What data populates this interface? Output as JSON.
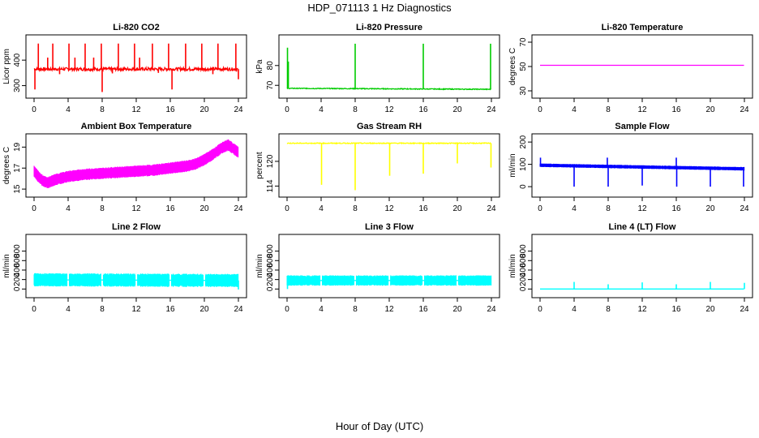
{
  "figure": {
    "title": "HDP_071113  1 Hz Diagnostics",
    "xlabel": "Hour of Day (UTC)"
  },
  "chart_data": [
    {
      "type": "line",
      "title": "Li-820 CO2",
      "ylabel": "Licor ppm",
      "color": "#ff0000",
      "xlim": [
        0,
        24
      ],
      "ylim": [
        270,
        480
      ],
      "xticks": [
        "0",
        "4",
        "8",
        "12",
        "16",
        "20",
        "24"
      ],
      "yticks": [
        300,
        400
      ],
      "baseline": 365,
      "baseline_noise": 6,
      "envelope": 0,
      "spikes": [
        {
          "x": 0.5,
          "to": 465
        },
        {
          "x": 0.1,
          "to": 285
        },
        {
          "x": 2.2,
          "to": 465
        },
        {
          "x": 1.6,
          "to": 410
        },
        {
          "x": 4.1,
          "to": 465
        },
        {
          "x": 4.8,
          "to": 410
        },
        {
          "x": 6.0,
          "to": 465
        },
        {
          "x": 7.0,
          "to": 410
        },
        {
          "x": 7.9,
          "to": 465
        },
        {
          "x": 8.0,
          "to": 275
        },
        {
          "x": 9.9,
          "to": 465
        },
        {
          "x": 11.8,
          "to": 465
        },
        {
          "x": 12.4,
          "to": 410
        },
        {
          "x": 13.9,
          "to": 465
        },
        {
          "x": 15.8,
          "to": 465
        },
        {
          "x": 16.2,
          "to": 285
        },
        {
          "x": 17.8,
          "to": 465
        },
        {
          "x": 19.7,
          "to": 465
        },
        {
          "x": 21.6,
          "to": 465
        },
        {
          "x": 23.7,
          "to": 465
        },
        {
          "x": 24.0,
          "to": 325
        },
        {
          "x": 3.0,
          "to": 345
        },
        {
          "x": 9.2,
          "to": 348
        },
        {
          "x": 14.6,
          "to": 350
        },
        {
          "x": 21.0,
          "to": 345
        }
      ]
    },
    {
      "type": "line",
      "title": "Li-820 Pressure",
      "ylabel": "kPa",
      "color": "#00cc00",
      "xlim": [
        0,
        24
      ],
      "ylim": [
        66,
        93
      ],
      "xticks": [
        "0",
        "4",
        "8",
        "12",
        "16",
        "20",
        "24"
      ],
      "yticks": [
        70,
        80
      ],
      "baseline": 68.5,
      "baseline_end": 68.0,
      "baseline_noise": 0.2,
      "envelope": 0,
      "spikes": [
        {
          "x": 0.05,
          "to": 89
        },
        {
          "x": 0.15,
          "to": 82
        },
        {
          "x": 8.0,
          "to": 91
        },
        {
          "x": 16.0,
          "to": 91
        },
        {
          "x": 23.9,
          "to": 91
        }
      ]
    },
    {
      "type": "line",
      "title": "Li-820 Temperature",
      "ylabel": "degrees C",
      "color": "#ff00ff",
      "xlim": [
        0,
        24
      ],
      "ylim": [
        28,
        72
      ],
      "xticks": [
        "0",
        "4",
        "8",
        "12",
        "16",
        "20",
        "24"
      ],
      "yticks": [
        30,
        50,
        70
      ],
      "baseline": 51,
      "baseline_noise": 0,
      "envelope": 0,
      "spikes": []
    },
    {
      "type": "line",
      "title": "Ambient Box Temperature",
      "ylabel": "degrees C",
      "color": "#ff00ff",
      "xlim": [
        0,
        24
      ],
      "ylim": [
        14.7,
        19.8
      ],
      "xticks": [
        "0",
        "4",
        "8",
        "12",
        "16",
        "20",
        "24"
      ],
      "yticks": [
        15,
        17,
        19
      ],
      "curve": [
        [
          0,
          16.7
        ],
        [
          0.5,
          16.2
        ],
        [
          1.0,
          15.8
        ],
        [
          1.6,
          15.6
        ],
        [
          2.5,
          15.9
        ],
        [
          4,
          16.2
        ],
        [
          6,
          16.4
        ],
        [
          8,
          16.5
        ],
        [
          10,
          16.6
        ],
        [
          12,
          16.7
        ],
        [
          14,
          16.8
        ],
        [
          16,
          17.0
        ],
        [
          18,
          17.2
        ],
        [
          19,
          17.4
        ],
        [
          20,
          17.8
        ],
        [
          21,
          18.3
        ],
        [
          22,
          18.9
        ],
        [
          22.8,
          19.2
        ],
        [
          23.5,
          18.8
        ],
        [
          24,
          18.5
        ]
      ],
      "envelope": 0.55,
      "spikes": []
    },
    {
      "type": "line",
      "title": "Gas Stream RH",
      "ylabel": "percent",
      "color": "#ffff00",
      "xlim": [
        0,
        24
      ],
      "ylim": [
        112.5,
        125.5
      ],
      "xticks": [
        "0",
        "4",
        "8",
        "12",
        "16",
        "20",
        "24"
      ],
      "yticks": [
        114,
        120
      ],
      "baseline": 124.4,
      "baseline_noise": 0.1,
      "envelope": 0,
      "spikes": [
        {
          "x": 4.05,
          "to": 114.3
        },
        {
          "x": 8.0,
          "to": 113.0
        },
        {
          "x": 12.05,
          "to": 116.5
        },
        {
          "x": 16.0,
          "to": 117.0
        },
        {
          "x": 20.0,
          "to": 119.5
        },
        {
          "x": 23.95,
          "to": 118.5
        }
      ]
    },
    {
      "type": "line",
      "title": "Sample Flow",
      "ylabel": "ml/min",
      "color": "#0000ff",
      "xlim": [
        0,
        24
      ],
      "ylim": [
        -25,
        215
      ],
      "xticks": [
        "0",
        "4",
        "8",
        "12",
        "16",
        "20",
        "24"
      ],
      "yticks": [
        0,
        100,
        200
      ],
      "baseline": 96,
      "baseline_end": 80,
      "baseline_noise": 2,
      "envelope": 8,
      "spikes": [
        {
          "x": 0.05,
          "to": 130
        },
        {
          "x": 4.0,
          "to": 0
        },
        {
          "x": 7.9,
          "to": 130
        },
        {
          "x": 8.0,
          "to": 0
        },
        {
          "x": 12.0,
          "to": 5
        },
        {
          "x": 16.0,
          "to": 130
        },
        {
          "x": 16.05,
          "to": 0
        },
        {
          "x": 20.0,
          "to": 0
        },
        {
          "x": 23.9,
          "to": 0
        }
      ]
    },
    {
      "type": "line",
      "title": "Line 2 Flow",
      "ylabel": "ml/min",
      "color": "#00ffff",
      "xlim": [
        0,
        24
      ],
      "ylim": [
        -80,
        1050
      ],
      "xticks": [
        "0",
        "4",
        "8",
        "12",
        "16",
        "20",
        "24"
      ],
      "yticks": [
        0,
        200,
        400,
        600,
        800
      ],
      "baseline": 195,
      "baseline_end": 180,
      "baseline_noise": 0,
      "envelope": 140,
      "gaps": [
        4,
        8,
        12,
        16,
        20
      ],
      "spikes": [
        {
          "x": 24.0,
          "to": -10
        }
      ]
    },
    {
      "type": "line",
      "title": "Line 3 Flow",
      "ylabel": "ml/min",
      "color": "#00ffff",
      "xlim": [
        0,
        24
      ],
      "ylim": [
        -80,
        1050
      ],
      "xticks": [
        "0",
        "4",
        "8",
        "12",
        "16",
        "20",
        "24"
      ],
      "yticks": [
        0,
        200,
        400,
        600,
        800
      ],
      "baseline": 180,
      "baseline_noise": 0,
      "envelope": 110,
      "gaps": [
        4,
        8,
        12,
        16,
        20
      ],
      "spikes": [
        {
          "x": 0.05,
          "to": 0
        }
      ]
    },
    {
      "type": "line",
      "title": "Line 4 (LT) Flow",
      "ylabel": "ml/min",
      "color": "#00ffff",
      "xlim": [
        0,
        24
      ],
      "ylim": [
        -80,
        1050
      ],
      "xticks": [
        "0",
        "4",
        "8",
        "12",
        "16",
        "20",
        "24"
      ],
      "yticks": [
        0,
        200,
        400,
        600,
        800
      ],
      "baseline": 0,
      "baseline_noise": 0,
      "envelope": 0,
      "spikes": [
        {
          "x": 4.0,
          "to": 150
        },
        {
          "x": 8.0,
          "to": 100
        },
        {
          "x": 12.0,
          "to": 140
        },
        {
          "x": 16.0,
          "to": 100
        },
        {
          "x": 20.0,
          "to": 150
        },
        {
          "x": 24.0,
          "to": 130
        }
      ]
    }
  ]
}
